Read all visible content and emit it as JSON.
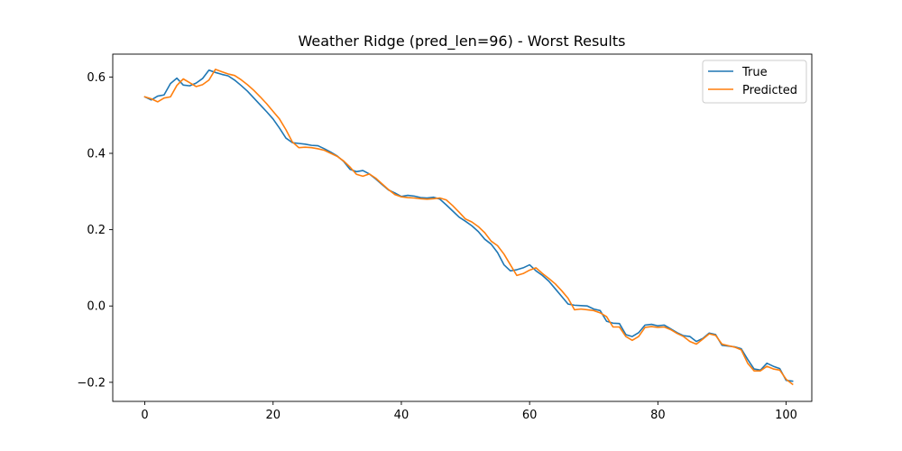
{
  "chart_data": {
    "type": "line",
    "title": "Weather Ridge (pred_len=96) - Worst Results",
    "xlabel": "",
    "ylabel": "",
    "xlim": [
      -5,
      104
    ],
    "ylim": [
      -0.25,
      0.66
    ],
    "xticks": [
      0,
      20,
      40,
      60,
      80,
      100
    ],
    "yticks": [
      -0.2,
      0.0,
      0.2,
      0.4,
      0.6
    ],
    "ytick_labels": [
      "−0.2",
      "0.0",
      "0.2",
      "0.4",
      "0.6"
    ],
    "grid": false,
    "legend_position": "top-right",
    "series": [
      {
        "name": "True",
        "color": "#1f77b4",
        "values": [
          0.548,
          0.54,
          0.55,
          0.553,
          0.583,
          0.597,
          0.579,
          0.577,
          0.584,
          0.596,
          0.618,
          0.612,
          0.607,
          0.603,
          0.592,
          0.578,
          0.563,
          0.545,
          0.527,
          0.509,
          0.49,
          0.466,
          0.44,
          0.428,
          0.426,
          0.424,
          0.421,
          0.42,
          0.412,
          0.403,
          0.393,
          0.379,
          0.358,
          0.352,
          0.355,
          0.346,
          0.333,
          0.318,
          0.304,
          0.296,
          0.287,
          0.29,
          0.288,
          0.284,
          0.283,
          0.285,
          0.28,
          0.265,
          0.249,
          0.233,
          0.222,
          0.21,
          0.195,
          0.175,
          0.162,
          0.14,
          0.108,
          0.092,
          0.095,
          0.1,
          0.108,
          0.092,
          0.08,
          0.065,
          0.045,
          0.025,
          0.005,
          0.002,
          0.001,
          0.0,
          -0.008,
          -0.012,
          -0.04,
          -0.045,
          -0.046,
          -0.075,
          -0.08,
          -0.07,
          -0.05,
          -0.048,
          -0.052,
          -0.05,
          -0.06,
          -0.07,
          -0.078,
          -0.08,
          -0.093,
          -0.085,
          -0.071,
          -0.075,
          -0.103,
          -0.105,
          -0.107,
          -0.112,
          -0.14,
          -0.165,
          -0.168,
          -0.15,
          -0.158,
          -0.164,
          -0.195,
          -0.197
        ]
      },
      {
        "name": "Predicted",
        "color": "#ff7f0e",
        "values": [
          0.548,
          0.543,
          0.535,
          0.545,
          0.548,
          0.578,
          0.595,
          0.585,
          0.575,
          0.58,
          0.592,
          0.62,
          0.614,
          0.608,
          0.604,
          0.593,
          0.58,
          0.565,
          0.548,
          0.53,
          0.51,
          0.49,
          0.462,
          0.43,
          0.415,
          0.416,
          0.415,
          0.412,
          0.408,
          0.4,
          0.392,
          0.38,
          0.364,
          0.345,
          0.34,
          0.346,
          0.335,
          0.32,
          0.305,
          0.292,
          0.286,
          0.284,
          0.283,
          0.281,
          0.28,
          0.281,
          0.283,
          0.278,
          0.263,
          0.246,
          0.228,
          0.22,
          0.208,
          0.192,
          0.17,
          0.158,
          0.136,
          0.108,
          0.08,
          0.085,
          0.094,
          0.1,
          0.085,
          0.072,
          0.058,
          0.04,
          0.02,
          -0.01,
          -0.008,
          -0.01,
          -0.012,
          -0.018,
          -0.028,
          -0.055,
          -0.055,
          -0.08,
          -0.09,
          -0.08,
          -0.056,
          -0.054,
          -0.056,
          -0.055,
          -0.062,
          -0.072,
          -0.08,
          -0.093,
          -0.1,
          -0.087,
          -0.073,
          -0.077,
          -0.1,
          -0.104,
          -0.108,
          -0.115,
          -0.15,
          -0.17,
          -0.17,
          -0.158,
          -0.165,
          -0.168,
          -0.192,
          -0.205
        ]
      }
    ]
  }
}
